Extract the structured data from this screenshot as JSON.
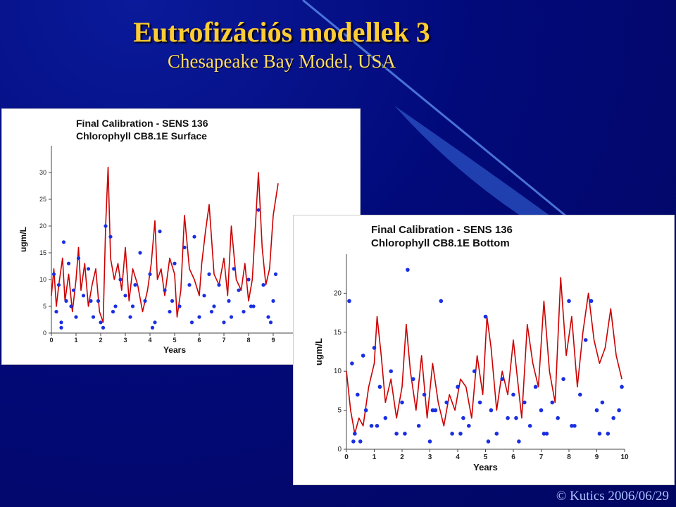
{
  "slide": {
    "title": "Eutrofizációs modellek 3",
    "subtitle": "Chesapeake Bay Model, USA",
    "footer": "© Kutics 2006/06/29",
    "colors": {
      "background": "#020a7a",
      "title": "#ffcc33",
      "model_line": "#cc0000",
      "observed": "#1a2fe0"
    }
  },
  "chart_data": [
    {
      "type": "line",
      "title": "Final Calibration - SENS 136",
      "subtitle": "Chlorophyll CB8.1E Surface",
      "xlabel": "Years",
      "ylabel": "ugm/L",
      "xlim": [
        0,
        10
      ],
      "ylim": [
        0,
        35
      ],
      "xticks": [
        "0",
        "1",
        "2",
        "3",
        "4",
        "5",
        "6",
        "7",
        "8",
        "9"
      ],
      "yticks": [
        "0",
        "5",
        "10",
        "15",
        "20",
        "25",
        "30"
      ],
      "series": [
        {
          "kind": "line",
          "x": [
            0,
            0.1,
            0.2,
            0.3,
            0.45,
            0.55,
            0.7,
            0.85,
            1.0,
            1.1,
            1.2,
            1.35,
            1.5,
            1.65,
            1.8,
            1.95,
            2.1,
            2.2,
            2.3,
            2.4,
            2.55,
            2.7,
            2.85,
            3.0,
            3.15,
            3.3,
            3.5,
            3.7,
            3.9,
            4.05,
            4.2,
            4.3,
            4.45,
            4.6,
            4.8,
            5.0,
            5.1,
            5.25,
            5.4,
            5.6,
            5.8,
            6.0,
            6.1,
            6.25,
            6.4,
            6.6,
            6.8,
            7.0,
            7.15,
            7.3,
            7.5,
            7.7,
            7.85,
            8.0,
            8.15,
            8.25,
            8.4,
            8.55,
            8.7,
            8.85,
            9.0,
            9.2
          ],
          "values": [
            7,
            12,
            5,
            9,
            14,
            6,
            11,
            4,
            10,
            16,
            8,
            13,
            5,
            9,
            12,
            4,
            2,
            20,
            31,
            14,
            10,
            13,
            8,
            16,
            6,
            12,
            9,
            4,
            8,
            13,
            21,
            10,
            12,
            7,
            14,
            11,
            3,
            8,
            22,
            12,
            10,
            7,
            13,
            19,
            24,
            11,
            9,
            14,
            7,
            20,
            10,
            8,
            13,
            6,
            10,
            18,
            30,
            16,
            9,
            12,
            22,
            28
          ]
        },
        {
          "kind": "scatter",
          "x": [
            0.1,
            0.2,
            0.3,
            0.4,
            0.5,
            0.6,
            0.7,
            0.8,
            0.9,
            1.1,
            1.3,
            1.5,
            1.7,
            1.9,
            2.1,
            2.2,
            2.4,
            2.6,
            2.8,
            3.0,
            3.2,
            3.4,
            3.6,
            3.8,
            4.0,
            4.2,
            4.4,
            4.6,
            4.8,
            5.0,
            5.2,
            5.4,
            5.6,
            5.8,
            6.0,
            6.2,
            6.4,
            6.6,
            6.8,
            7.0,
            7.2,
            7.4,
            7.6,
            7.8,
            8.0,
            8.2,
            8.4,
            8.6,
            8.8,
            9.0,
            9.1,
            0.4,
            1.0,
            1.6,
            2.0,
            2.5,
            3.3,
            4.1,
            4.9,
            5.7,
            6.5,
            7.3,
            8.1,
            8.9
          ],
          "values": [
            11,
            4,
            9,
            1,
            17,
            6,
            13,
            5,
            8,
            14,
            7,
            12,
            3,
            6,
            1,
            20,
            18,
            5,
            10,
            7,
            3,
            9,
            15,
            6,
            11,
            2,
            19,
            8,
            4,
            13,
            5,
            16,
            9,
            18,
            3,
            7,
            11,
            5,
            9,
            2,
            6,
            12,
            8,
            4,
            10,
            5,
            23,
            9,
            3,
            6,
            11,
            2,
            3,
            6,
            2,
            4,
            5,
            1,
            6,
            2,
            4,
            3,
            5,
            2
          ]
        }
      ]
    },
    {
      "type": "line",
      "title": "Final Calibration - SENS 136",
      "subtitle": "Chlorophyll CB8.1E Bottom",
      "xlabel": "Years",
      "ylabel": "ugm/L",
      "xlim": [
        0,
        10
      ],
      "ylim": [
        0,
        25
      ],
      "xticks": [
        "0",
        "1",
        "2",
        "3",
        "4",
        "5",
        "6",
        "7",
        "8",
        "9",
        "10"
      ],
      "yticks": [
        "0",
        "5",
        "10",
        "15",
        "20"
      ],
      "series": [
        {
          "kind": "line",
          "x": [
            0,
            0.15,
            0.3,
            0.45,
            0.6,
            0.8,
            1.0,
            1.1,
            1.25,
            1.4,
            1.6,
            1.8,
            2.0,
            2.15,
            2.3,
            2.5,
            2.7,
            2.9,
            3.1,
            3.3,
            3.5,
            3.7,
            3.9,
            4.1,
            4.3,
            4.5,
            4.7,
            4.9,
            5.05,
            5.2,
            5.4,
            5.6,
            5.8,
            6.0,
            6.15,
            6.3,
            6.5,
            6.7,
            6.9,
            7.1,
            7.3,
            7.5,
            7.7,
            7.9,
            8.1,
            8.3,
            8.5,
            8.7,
            8.9,
            9.1,
            9.3,
            9.5,
            9.7,
            9.9
          ],
          "values": [
            10,
            5,
            2,
            4,
            3,
            8,
            11,
            17,
            12,
            6,
            9,
            4,
            8,
            16,
            10,
            5,
            12,
            4,
            11,
            6,
            3,
            7,
            5,
            9,
            8,
            4,
            12,
            7,
            17,
            13,
            5,
            10,
            7,
            14,
            9,
            4,
            16,
            11,
            8,
            19,
            10,
            6,
            22,
            12,
            17,
            8,
            15,
            20,
            14,
            11,
            13,
            18,
            12,
            9
          ]
        },
        {
          "kind": "scatter",
          "x": [
            0.1,
            0.2,
            0.3,
            0.4,
            0.5,
            0.6,
            0.7,
            0.9,
            1.0,
            1.2,
            1.4,
            1.6,
            1.8,
            2.0,
            2.2,
            2.4,
            2.6,
            2.8,
            3.0,
            3.2,
            3.4,
            3.6,
            3.8,
            4.0,
            4.2,
            4.4,
            4.6,
            4.8,
            5.0,
            5.2,
            5.4,
            5.6,
            5.8,
            6.0,
            6.2,
            6.4,
            6.6,
            6.8,
            7.0,
            7.2,
            7.4,
            7.6,
            7.8,
            8.0,
            8.2,
            8.4,
            8.6,
            8.8,
            9.0,
            9.2,
            9.4,
            9.6,
            9.8,
            9.9,
            0.25,
            1.1,
            2.1,
            3.1,
            4.1,
            5.1,
            6.1,
            7.1,
            8.1,
            9.1
          ],
          "values": [
            19,
            11,
            2,
            7,
            1,
            12,
            5,
            3,
            13,
            8,
            4,
            10,
            2,
            6,
            23,
            9,
            3,
            7,
            1,
            5,
            19,
            6,
            2,
            8,
            4,
            3,
            10,
            6,
            17,
            5,
            2,
            9,
            4,
            7,
            1,
            6,
            3,
            8,
            5,
            2,
            6,
            4,
            9,
            19,
            3,
            7,
            14,
            19,
            5,
            6,
            2,
            4,
            5,
            8,
            1,
            3,
            2,
            5,
            2,
            1,
            4,
            2,
            3,
            2
          ]
        }
      ]
    }
  ]
}
